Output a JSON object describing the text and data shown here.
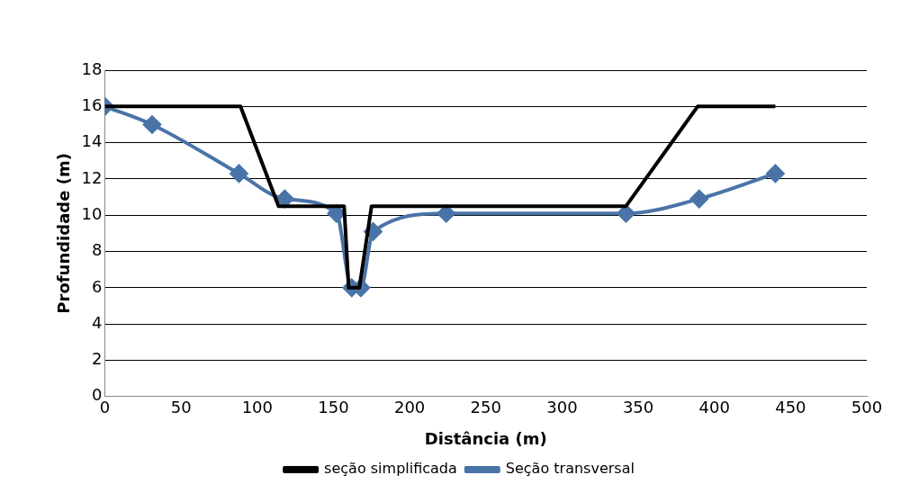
{
  "chart_data": {
    "type": "line",
    "xlabel": "Distância (m)",
    "ylabel": "Profundidade (m)",
    "xlim": [
      0,
      500
    ],
    "xticks": [
      0,
      50,
      100,
      150,
      200,
      250,
      300,
      350,
      400,
      450,
      500
    ],
    "ylim": [
      0,
      18
    ],
    "yticks": [
      0,
      2,
      4,
      6,
      8,
      10,
      12,
      14,
      16,
      18
    ],
    "grid": "y",
    "legend": "bottom",
    "series": [
      {
        "name": "seção simplificada",
        "color": "#000000",
        "marker": "none",
        "x": [
          0,
          89,
          114,
          157,
          160,
          167,
          175,
          342,
          389,
          440
        ],
        "values": [
          16,
          16,
          10.5,
          10.5,
          6,
          6,
          10.5,
          10.5,
          16,
          16
        ]
      },
      {
        "name": "Seção transversal",
        "color": "#4a74a8",
        "marker": "diamond",
        "x": [
          0,
          31,
          88,
          118,
          152,
          162,
          168,
          176,
          224,
          342,
          390,
          440
        ],
        "values": [
          16,
          15,
          12.3,
          10.9,
          10.1,
          6,
          6,
          9.1,
          10.1,
          10.1,
          10.9,
          12.3
        ]
      }
    ]
  }
}
